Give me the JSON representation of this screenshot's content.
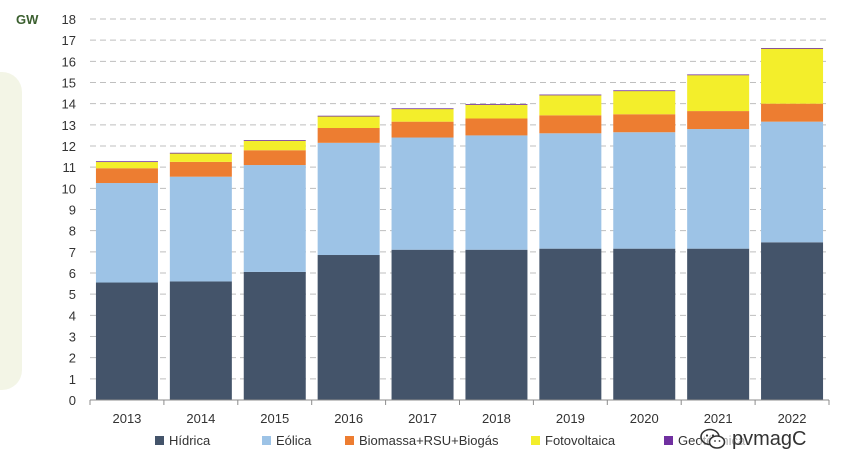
{
  "chart_data": {
    "type": "bar",
    "stacked": true,
    "unit_label": "GW",
    "categories": [
      "2013",
      "2014",
      "2015",
      "2016",
      "2017",
      "2018",
      "2019",
      "2020",
      "2021",
      "2022"
    ],
    "series": [
      {
        "name": "Hídrica",
        "color": "#44546a",
        "values": [
          5.55,
          5.6,
          6.05,
          6.85,
          7.1,
          7.1,
          7.15,
          7.15,
          7.15,
          7.45
        ]
      },
      {
        "name": "Eólica",
        "color": "#9dc3e6",
        "values": [
          4.7,
          4.95,
          5.05,
          5.3,
          5.3,
          5.4,
          5.45,
          5.5,
          5.65,
          5.7
        ]
      },
      {
        "name": "Biomassa+RSU+Biogás",
        "color": "#ed7d31",
        "values": [
          0.7,
          0.7,
          0.7,
          0.7,
          0.75,
          0.8,
          0.85,
          0.85,
          0.85,
          0.85
        ]
      },
      {
        "name": "Fotovoltaica",
        "color": "#f3ee2b",
        "values": [
          0.3,
          0.4,
          0.45,
          0.55,
          0.6,
          0.65,
          0.95,
          1.1,
          1.7,
          2.6
        ]
      },
      {
        "name": "Geotérmica",
        "color": "#7030a0",
        "values": [
          0.03,
          0.03,
          0.03,
          0.03,
          0.03,
          0.03,
          0.03,
          0.03,
          0.03,
          0.03
        ]
      }
    ],
    "ylim": [
      0,
      18
    ],
    "yticks": [
      "0",
      "1",
      "2",
      "3",
      "4",
      "5",
      "6",
      "7",
      "8",
      "9",
      "10",
      "11",
      "12",
      "13",
      "14",
      "15",
      "16",
      "17",
      "18"
    ],
    "grid": true,
    "legend_position": "bottom"
  },
  "watermark": {
    "text": "pvmagC",
    "icon": "wechat-icon"
  }
}
